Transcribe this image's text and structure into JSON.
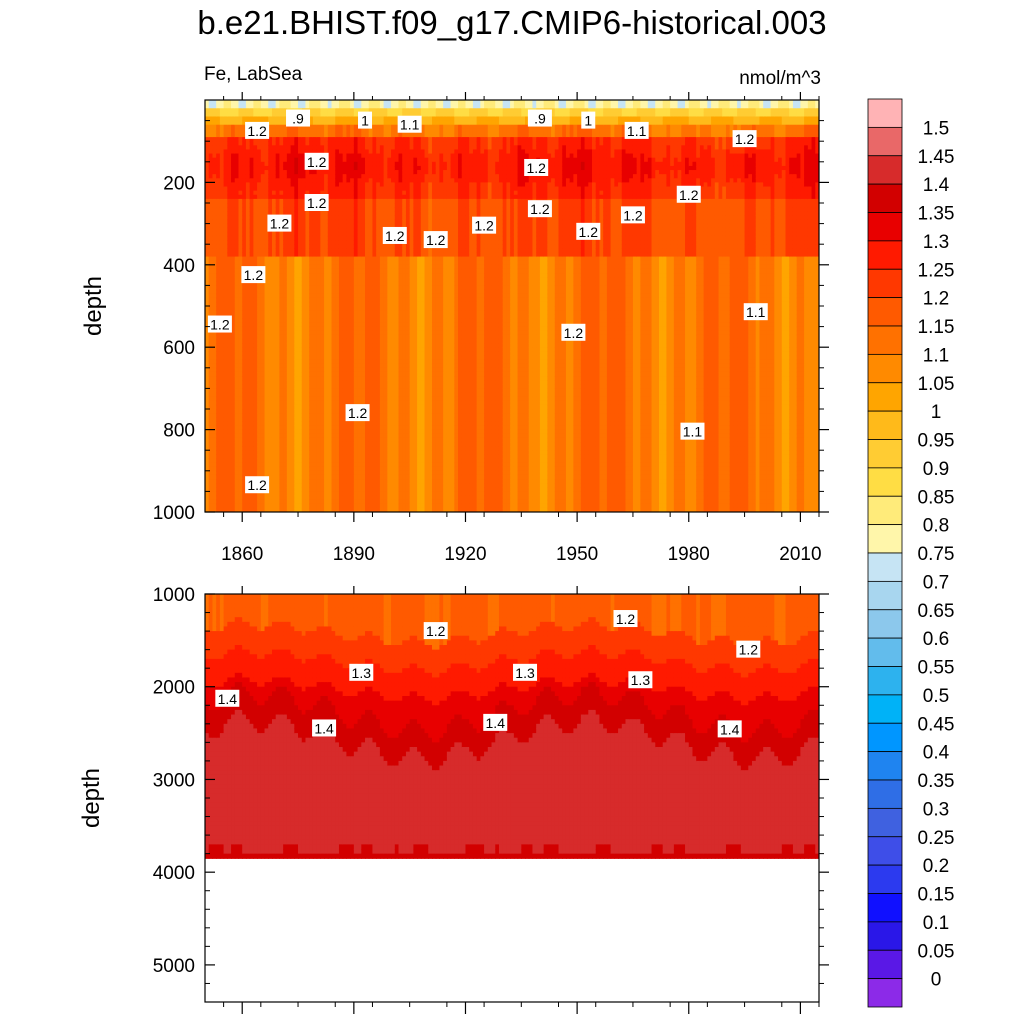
{
  "title": "b.e21.BHIST.f09_g17.CMIP6-historical.003",
  "panel_top": {
    "left_label": "Fe, LabSea",
    "right_label": "nmol/m^3",
    "ylabel": "depth",
    "yticks": [
      "200",
      "400",
      "600",
      "800",
      "1000"
    ],
    "xticks": [
      "1860",
      "1890",
      "1920",
      "1950",
      "1980",
      "2010"
    ]
  },
  "panel_bottom": {
    "ylabel": "depth",
    "yticks": [
      "1000",
      "2000",
      "3000",
      "4000",
      "5000"
    ]
  },
  "colorbar": {
    "labels": [
      "1.5",
      "1.45",
      "1.4",
      "1.35",
      "1.3",
      "1.25",
      "1.2",
      "1.15",
      "1.1",
      "1.05",
      "1",
      "0.95",
      "0.9",
      "0.85",
      "0.8",
      "0.75",
      "0.7",
      "0.65",
      "0.6",
      "0.55",
      "0.5",
      "0.45",
      "0.4",
      "0.35",
      "0.3",
      "0.25",
      "0.2",
      "0.15",
      "0.1",
      "0.05",
      "0"
    ],
    "colors": [
      "#ffb3b5",
      "#e96868",
      "#d72b2b",
      "#d20000",
      "#e80000",
      "#ff1a00",
      "#ff3800",
      "#ff5a00",
      "#ff7100",
      "#ff8a00",
      "#ffa500",
      "#ffba1a",
      "#ffcc33",
      "#ffdd44",
      "#ffeb7a",
      "#fff6aa",
      "#c6e4f4",
      "#a8d6ef",
      "#8cc8ec",
      "#62bcec",
      "#2db2ee",
      "#00b2f7",
      "#0096ff",
      "#1f84f0",
      "#2f6ee6",
      "#3f61e0",
      "#3e4ee8",
      "#2c3aef",
      "#1010ff",
      "#2a17e8",
      "#5a18e6",
      "#8c2ae8"
    ]
  },
  "chart_data": {
    "type": "heatmap",
    "x_label": "",
    "y_label": "depth",
    "x_range": [
      1850,
      2015
    ],
    "y_range_top_panel": [
      0,
      1000
    ],
    "y_range_bottom_panel": [
      1000,
      5400
    ],
    "contour_interval": 0.05,
    "data_bottom_depth": 3850,
    "contour_labels_top": [
      {
        "label": "1.2",
        "year": 1864,
        "depth": 75
      },
      {
        "label": ".9",
        "year": 1875,
        "depth": 45
      },
      {
        "label": "1",
        "year": 1893,
        "depth": 50
      },
      {
        "label": "1.1",
        "year": 1905,
        "depth": 60
      },
      {
        "label": ".9",
        "year": 1940,
        "depth": 45
      },
      {
        "label": "1",
        "year": 1953,
        "depth": 50
      },
      {
        "label": "1.1",
        "year": 1966,
        "depth": 75
      },
      {
        "label": "1.2",
        "year": 1995,
        "depth": 95
      },
      {
        "label": "1.2",
        "year": 1880,
        "depth": 150
      },
      {
        "label": "1.2",
        "year": 1939,
        "depth": 165
      },
      {
        "label": "1.2",
        "year": 1980,
        "depth": 230
      },
      {
        "label": "1.2",
        "year": 1880,
        "depth": 250
      },
      {
        "label": "1.2",
        "year": 1870,
        "depth": 300
      },
      {
        "label": "1.2",
        "year": 1940,
        "depth": 265
      },
      {
        "label": "1.2",
        "year": 1901,
        "depth": 330
      },
      {
        "label": "1.2",
        "year": 1912,
        "depth": 340
      },
      {
        "label": "1.2",
        "year": 1925,
        "depth": 305
      },
      {
        "label": "1.2",
        "year": 1965,
        "depth": 280
      },
      {
        "label": "1.2",
        "year": 1953,
        "depth": 320
      },
      {
        "label": "1.2",
        "year": 1863,
        "depth": 425
      },
      {
        "label": "1.2",
        "year": 1854,
        "depth": 545
      },
      {
        "label": "1.2",
        "year": 1949,
        "depth": 565
      },
      {
        "label": "1.1",
        "year": 1998,
        "depth": 515
      },
      {
        "label": "1.2",
        "year": 1891,
        "depth": 760
      },
      {
        "label": "1.1",
        "year": 1981,
        "depth": 805
      },
      {
        "label": "1.2",
        "year": 1864,
        "depth": 935
      }
    ],
    "contour_labels_bottom": [
      {
        "label": "1.2",
        "year": 1912,
        "depth": 1400
      },
      {
        "label": "1.2",
        "year": 1963,
        "depth": 1270
      },
      {
        "label": "1.2",
        "year": 1996,
        "depth": 1600
      },
      {
        "label": "1.3",
        "year": 1892,
        "depth": 1850
      },
      {
        "label": "1.3",
        "year": 1936,
        "depth": 1850
      },
      {
        "label": "1.3",
        "year": 1967,
        "depth": 1930
      },
      {
        "label": "1.4",
        "year": 1856,
        "depth": 2130
      },
      {
        "label": "1.4",
        "year": 1882,
        "depth": 2450
      },
      {
        "label": "1.4",
        "year": 1928,
        "depth": 2390
      },
      {
        "label": "1.4",
        "year": 1991,
        "depth": 2460
      }
    ]
  }
}
